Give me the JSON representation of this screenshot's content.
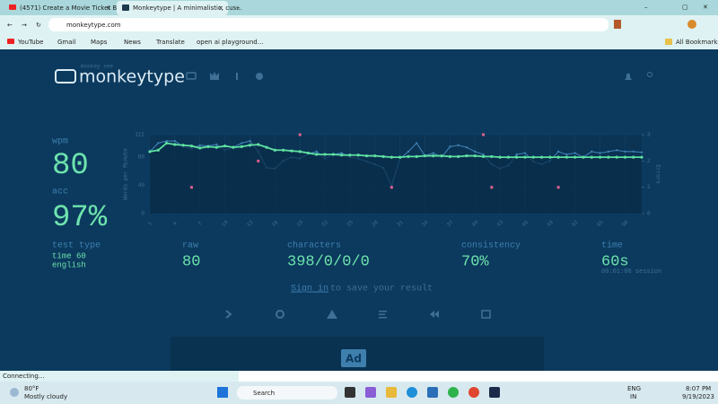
{
  "browser": {
    "tabs": [
      "(4571) Create a Movie Ticket Bo...",
      "Monkeytype | A minimalistic, cus..."
    ],
    "url": "monkeytype.com",
    "bookmarks": [
      "YouTube",
      "Gmail",
      "Maps",
      "News",
      "Translate",
      "open ai playground...",
      "All Bookmarks"
    ],
    "status": "Connecting..."
  },
  "header": {
    "logo_small": "monkey see",
    "logo": "monkeytype"
  },
  "result": {
    "wpm_label": "wpm",
    "wpm": "80",
    "acc_label": "acc",
    "acc": "97%",
    "test_type_label": "test type",
    "test_type": "time 60",
    "language": "english",
    "raw_label": "raw",
    "raw": "80",
    "characters_label": "characters",
    "characters": "398/0/0/0",
    "consistency_label": "consistency",
    "consistency": "70%",
    "time_label": "time",
    "time": "60s",
    "session": "00:01:00 session"
  },
  "save": {
    "link": "Sign in",
    "text": "to save your result"
  },
  "ad": "Ad",
  "chart": {
    "type": "line",
    "y_label": "Words per Minute",
    "y2_label": "Errors",
    "xlim": [
      1,
      60
    ],
    "xticks": [
      1,
      4,
      7,
      10,
      13,
      16,
      19,
      22,
      25,
      28,
      31,
      34,
      37,
      40,
      43,
      46,
      49,
      52,
      55,
      58
    ],
    "ylim": [
      0,
      112
    ],
    "yticks": [
      0,
      40,
      80,
      112
    ],
    "y2lim": [
      0,
      3
    ],
    "y2ticks": [
      0,
      1,
      2,
      3
    ],
    "x": [
      1,
      2,
      3,
      4,
      5,
      6,
      7,
      8,
      9,
      10,
      11,
      12,
      13,
      14,
      15,
      16,
      17,
      18,
      19,
      20,
      21,
      22,
      23,
      24,
      25,
      26,
      27,
      28,
      29,
      30,
      31,
      32,
      33,
      34,
      35,
      36,
      37,
      38,
      39,
      40,
      41,
      42,
      43,
      44,
      45,
      46,
      47,
      48,
      49,
      50,
      51,
      52,
      53,
      54,
      55,
      56,
      57,
      58,
      59,
      60
    ],
    "series": [
      {
        "color": "#3f7fb0",
        "values": [
          88,
          100,
          103,
          103,
          95,
          92,
          97,
          96,
          98,
          90,
          94,
          100,
          103,
          88,
          65,
          64,
          75,
          80,
          78,
          85,
          88,
          78,
          84,
          86,
          80,
          78,
          74,
          70,
          65,
          40,
          78,
          88,
          100,
          82,
          86,
          80,
          95,
          97,
          94,
          88,
          84,
          70,
          64,
          68,
          84,
          86,
          74,
          70,
          75,
          88,
          84,
          86,
          80,
          88,
          86,
          88,
          90,
          88,
          88,
          87
        ]
      },
      {
        "color": "#5ee0a0",
        "values": [
          88,
          90,
          100,
          98,
          97,
          96,
          93,
          95,
          94,
          96,
          94,
          95,
          97,
          98,
          94,
          90,
          90,
          89,
          88,
          86,
          84,
          84,
          84,
          83,
          83,
          83,
          82,
          82,
          81,
          80,
          80,
          81,
          81,
          82,
          82,
          82,
          81,
          81,
          82,
          82,
          81,
          81,
          80,
          80,
          80,
          80,
          80,
          80,
          80,
          80,
          80,
          80,
          80,
          80,
          80,
          80,
          80,
          80,
          80,
          80
        ]
      }
    ],
    "errors": {
      "color": "#e0608e",
      "axis": "y2",
      "x": [
        6,
        14,
        19,
        30,
        41,
        42,
        50
      ],
      "values": [
        1,
        2,
        3,
        1,
        3,
        1,
        1
      ]
    }
  },
  "taskbar": {
    "temp": "80°F",
    "weather": "Mostly cloudy",
    "search": "Search",
    "lang": "ENG",
    "region": "IN",
    "time": "8:07 PM",
    "date": "9/19/2023"
  }
}
